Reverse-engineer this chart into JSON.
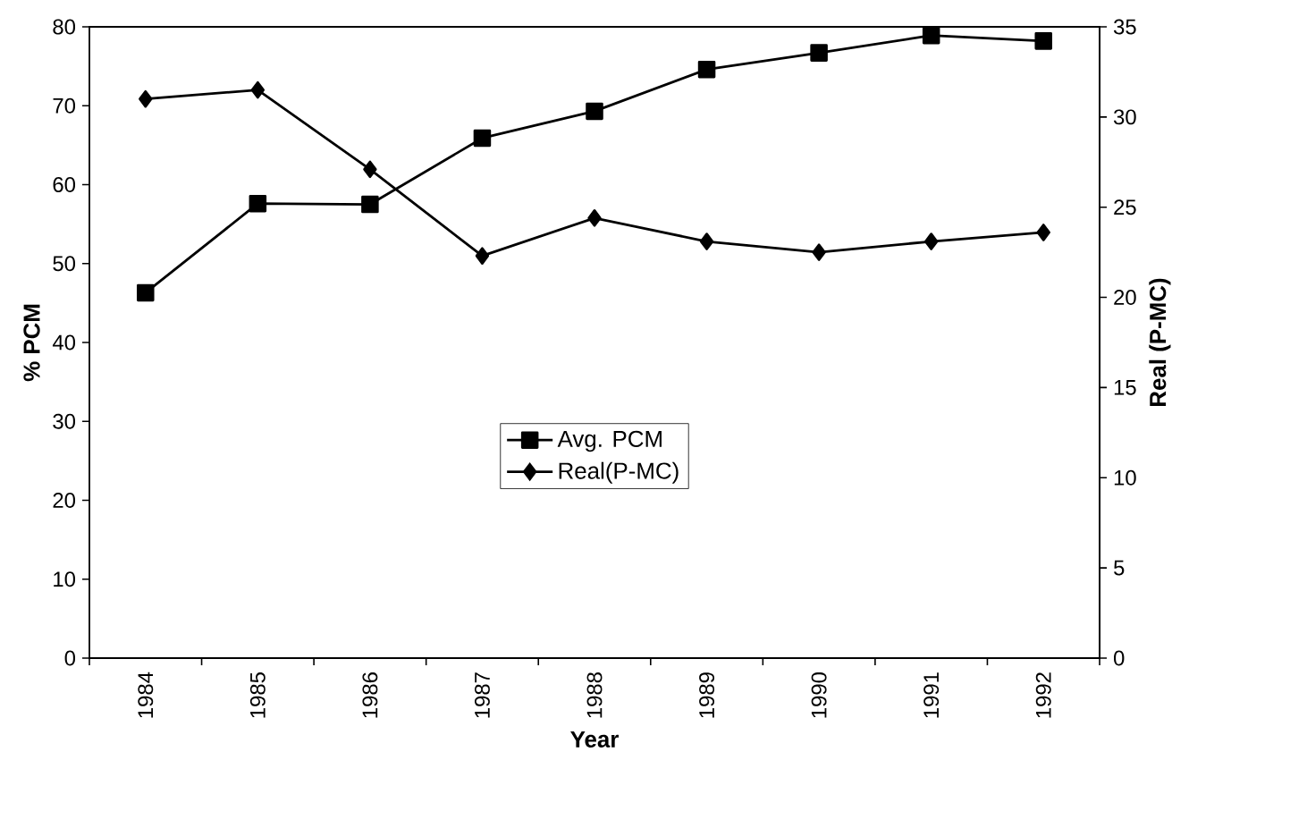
{
  "chart_data": {
    "type": "line",
    "xlabel": "Year",
    "ylabel": "% PCM",
    "y2label": "Real (P-MC)",
    "categories": [
      "1984",
      "1985",
      "1986",
      "1987",
      "1988",
      "1989",
      "1990",
      "1991",
      "1992"
    ],
    "series": [
      {
        "name": "Avg. PCM",
        "color": "#000000",
        "marker": "square",
        "values": [
          46.3,
          57.6,
          57.5,
          65.9,
          69.3,
          74.6,
          76.7,
          78.9,
          78.2
        ]
      },
      {
        "name": "Real(P-MC)",
        "color": "#000000",
        "marker": "diamond",
        "axis": "y2",
        "values": [
          31.0,
          31.5,
          27.1,
          22.3,
          24.4,
          23.1,
          22.5,
          23.1,
          23.6
        ]
      }
    ],
    "ylim": [
      0,
      80
    ],
    "yticks": [
      0,
      10,
      20,
      30,
      40,
      50,
      60,
      70,
      80
    ],
    "y2lim": [
      0,
      35
    ],
    "y2ticks": [
      0,
      5,
      10,
      15,
      20,
      25,
      30,
      35
    ],
    "legend": "center"
  }
}
